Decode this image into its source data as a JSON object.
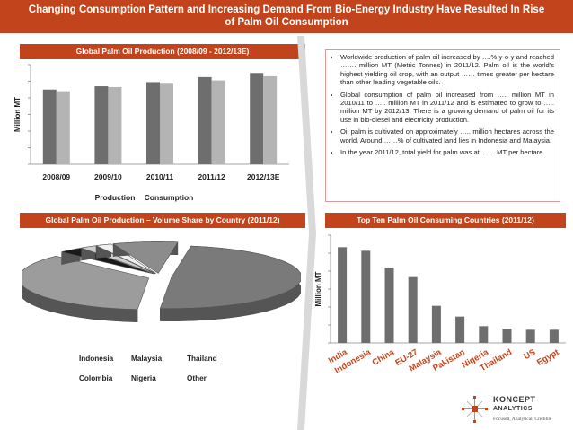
{
  "header": {
    "line1": "Changing Consumption Pattern and Increasing Demand From Bio-Energy Industry Have Resulted In Rise",
    "line2": "of Palm Oil Consumption"
  },
  "panel1": {
    "title": "Global Palm Oil Production (2008/09 - 2012/13E)"
  },
  "panel2": {
    "title": "Global Palm Oil Production – Volume Share by Country (2011/12)"
  },
  "panel3": {
    "title": "Top Ten Palm Oil Consuming Countries (2011/12)"
  },
  "bullets": [
    "Worldwide production of palm oil increased by ….% y-o-y and reached ……. million MT (Metric Tonnes) in 2011/12. Palm oil is the world's highest yielding oil crop, with an output …… times greater per hectare than other leading vegetable oils.",
    "Global consumption of palm oil increased from ….. million MT in 2010/11 to ….. million MT in 2011/12 and is estimated to grow to ….. million MT by 2012/13. There is a growing demand of palm oil for its use in bio-diesel and electricity production.",
    "Oil palm is cultivated on approximately ….. million hectares across the world. Around ……% of cultivated land lies in Indonesia and Malaysia.",
    "In the year 2011/12, total yield for palm was at …….MT per hectare."
  ],
  "colors": {
    "accent": "#c2441c",
    "dark_bar": "#6e6e6e",
    "light_bar": "#b4b4b4"
  },
  "chart_data": [
    {
      "type": "bar",
      "ylabel": "Million MT",
      "categories": [
        "2008/09",
        "2009/10",
        "2010/11",
        "2011/12",
        "2012/13E"
      ],
      "ylim": [
        0,
        60
      ],
      "series": [
        {
          "name": "Production",
          "values": [
            45,
            47,
            49.5,
            52.5,
            55
          ]
        },
        {
          "name": "Consumption",
          "values": [
            44,
            46.5,
            48.5,
            50.5,
            53
          ]
        }
      ]
    },
    {
      "type": "pie",
      "labels": [
        "Indonesia",
        "Malaysia",
        "Thailand",
        "Colombia",
        "Nigeria",
        "Other"
      ],
      "values": [
        49,
        36,
        3,
        2,
        2,
        8
      ]
    },
    {
      "type": "bar",
      "ylabel": "Million MT",
      "categories": [
        "India",
        "Indonesia",
        "China",
        "EU-27",
        "Malaysia",
        "Pakistan",
        "Nigeria",
        "Thailand",
        "US",
        "Egypt"
      ],
      "ylim": [
        0,
        9
      ],
      "values": [
        8.0,
        7.7,
        6.3,
        5.5,
        3.1,
        2.2,
        1.4,
        1.2,
        1.1,
        1.1
      ]
    }
  ],
  "logo": {
    "name": "KONCEPT",
    "name2": "ANALYTICS",
    "tagline": "Focused, Analytical, Credible"
  }
}
